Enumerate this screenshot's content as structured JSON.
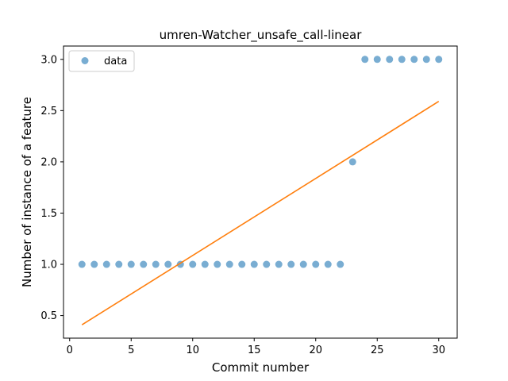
{
  "chart_data": {
    "type": "scatter",
    "title": "umren-Watcher_unsafe_call-linear",
    "xlabel": "Commit number",
    "ylabel": "Number of instance of a feature",
    "xlim": [
      -0.5,
      31.5
    ],
    "ylim": [
      0.28,
      3.13
    ],
    "xticks": [
      0,
      5,
      10,
      15,
      20,
      25,
      30
    ],
    "yticks": [
      0.5,
      1.0,
      1.5,
      2.0,
      2.5,
      3.0
    ],
    "xtick_labels": [
      "0",
      "5",
      "10",
      "15",
      "20",
      "25",
      "30"
    ],
    "ytick_labels": [
      "0.5",
      "1.0",
      "1.5",
      "2.0",
      "2.5",
      "3.0"
    ],
    "grid": false,
    "legend": {
      "position": "top-left",
      "entries": [
        "data"
      ]
    },
    "series": [
      {
        "name": "data",
        "kind": "scatter",
        "color": "#1f77b4",
        "x": [
          1,
          2,
          3,
          4,
          5,
          6,
          7,
          8,
          9,
          10,
          11,
          12,
          13,
          14,
          15,
          16,
          17,
          18,
          19,
          20,
          21,
          22,
          23,
          24,
          25,
          26,
          27,
          28,
          29,
          30
        ],
        "y": [
          1,
          1,
          1,
          1,
          1,
          1,
          1,
          1,
          1,
          1,
          1,
          1,
          1,
          1,
          1,
          1,
          1,
          1,
          1,
          1,
          1,
          1,
          2,
          3,
          3,
          3,
          3,
          3,
          3,
          3
        ]
      },
      {
        "kind": "line",
        "color": "#ff7f0e",
        "x": [
          1,
          30
        ],
        "y": [
          0.41,
          2.59
        ]
      }
    ]
  }
}
